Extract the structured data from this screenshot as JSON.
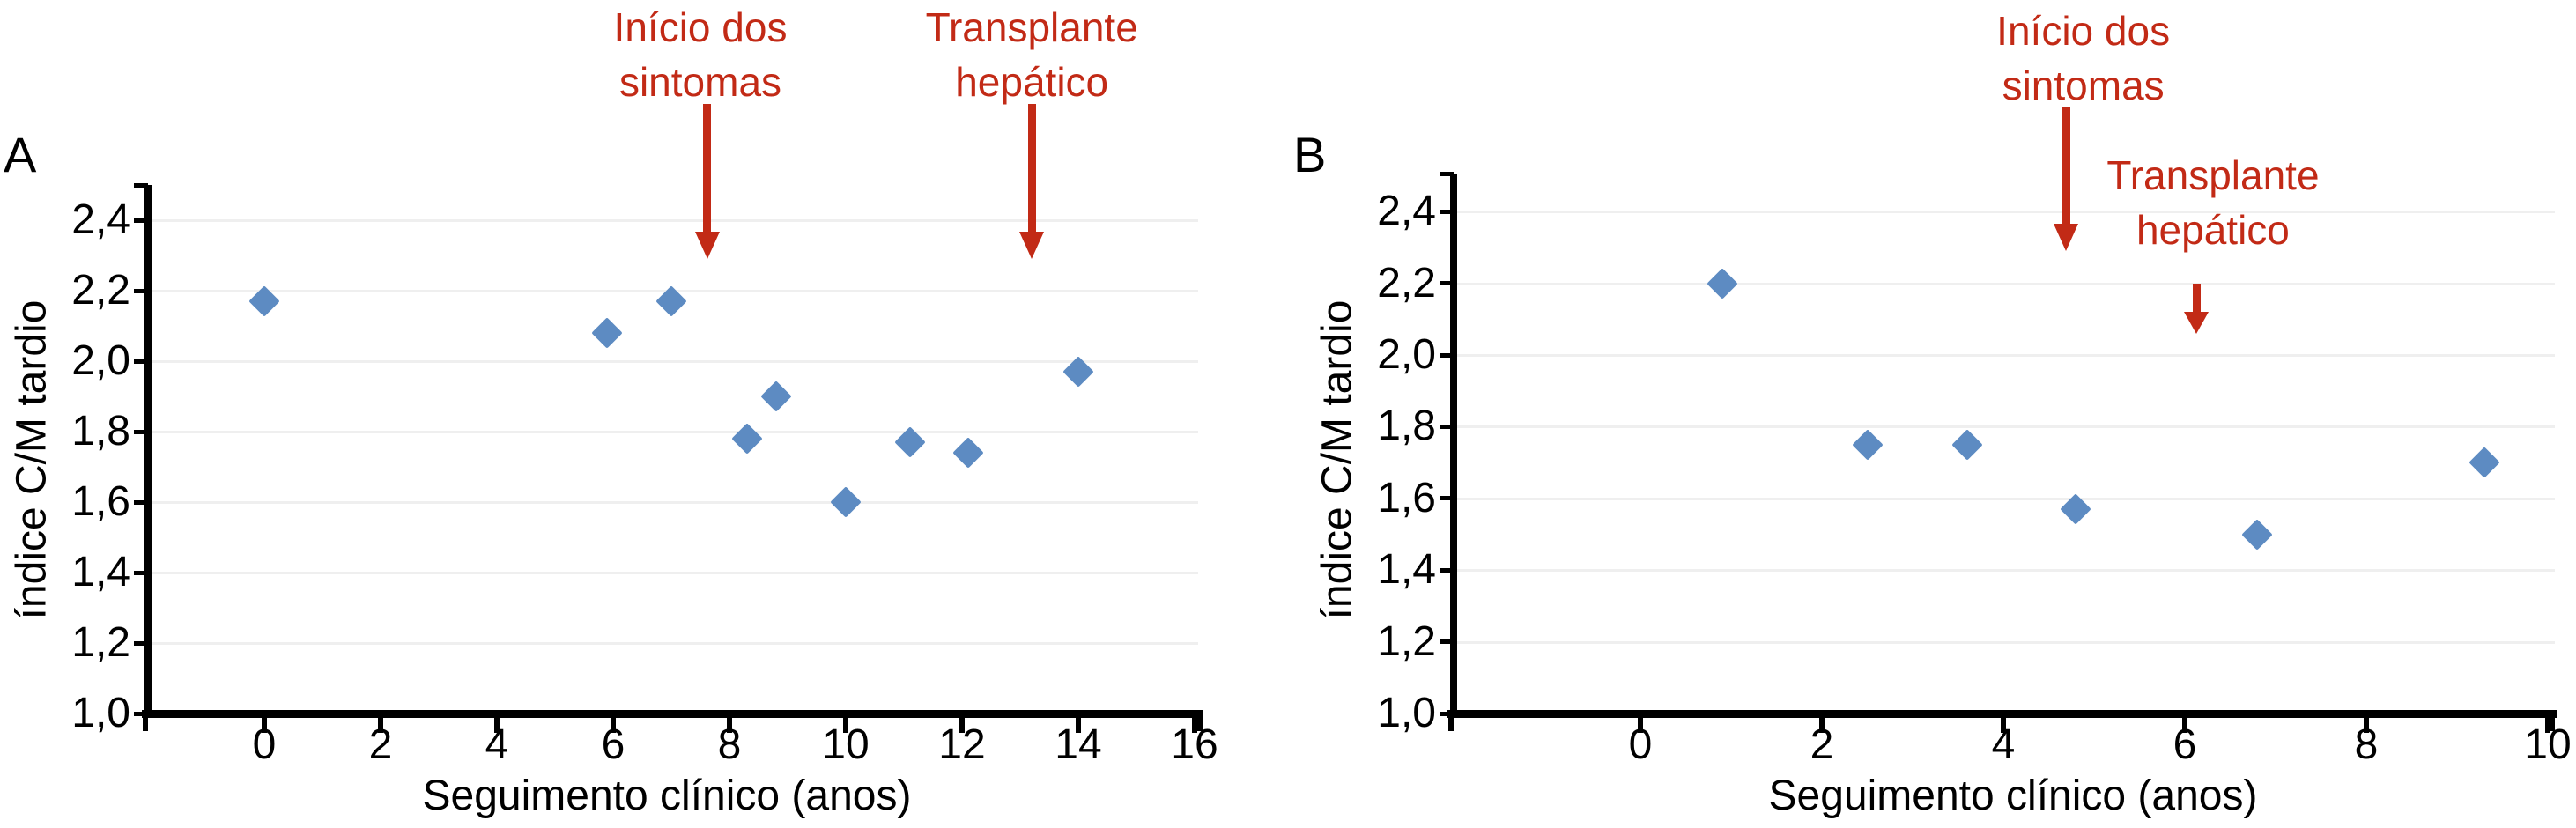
{
  "colors": {
    "marker": "#5d8bc2",
    "annotation_red": "#c22a16",
    "grid": "#efefef",
    "axis": "#000000",
    "background": "#ffffff"
  },
  "chart_data": [
    {
      "panel": "A",
      "type": "scatter",
      "marker": "diamond",
      "xlabel": "Seguimento clínico (anos)",
      "ylabel": "índice C/M tardio",
      "xlim": [
        0,
        16
      ],
      "ylim": [
        1.0,
        2.4
      ],
      "grid": true,
      "legend": false,
      "xticks": [
        0,
        2,
        4,
        6,
        8,
        10,
        12,
        14,
        16
      ],
      "yticks": [
        {
          "label": "2,4",
          "value": 2.4
        },
        {
          "label": "2,2",
          "value": 2.2
        },
        {
          "label": "2,0",
          "value": 2.0
        },
        {
          "label": "1,8",
          "value": 1.8
        },
        {
          "label": "1,6",
          "value": 1.6
        },
        {
          "label": "1,4",
          "value": 1.4
        },
        {
          "label": "1,2",
          "value": 1.2
        },
        {
          "label": "1,0",
          "value": 1.0
        }
      ],
      "points": [
        {
          "x": 0.0,
          "y": 2.17
        },
        {
          "x": 5.9,
          "y": 2.08
        },
        {
          "x": 7.0,
          "y": 2.17
        },
        {
          "x": 8.3,
          "y": 1.78
        },
        {
          "x": 8.8,
          "y": 1.9
        },
        {
          "x": 10.0,
          "y": 1.6
        },
        {
          "x": 11.1,
          "y": 1.77
        },
        {
          "x": 12.1,
          "y": 1.74
        },
        {
          "x": 14.0,
          "y": 1.97
        }
      ],
      "annotations": [
        {
          "label": "Início dos sintomas",
          "lines": [
            "Início dos",
            "sintomas"
          ],
          "text_x": 7.5,
          "arrow": {
            "x": 7.62,
            "from_y": 2.73,
            "to_y": 2.29
          }
        },
        {
          "label": "Transplante hepático",
          "lines": [
            "Transplante",
            "hepático"
          ],
          "text_x": 13.2,
          "arrow": {
            "x": 13.2,
            "from_y": 2.73,
            "to_y": 2.29
          }
        }
      ]
    },
    {
      "panel": "B",
      "type": "scatter",
      "marker": "diamond",
      "xlabel": "Seguimento clínico (anos)",
      "ylabel": "índice C/M tardio",
      "xlim": [
        0,
        10
      ],
      "ylim": [
        1.0,
        2.4
      ],
      "grid": true,
      "legend": false,
      "xticks": [
        0,
        2,
        4,
        6,
        8,
        10
      ],
      "yticks": [
        {
          "label": "2,4",
          "value": 2.4
        },
        {
          "label": "2,2",
          "value": 2.2
        },
        {
          "label": "2,0",
          "value": 2.0
        },
        {
          "label": "1,8",
          "value": 1.8
        },
        {
          "label": "1,6",
          "value": 1.6
        },
        {
          "label": "1,4",
          "value": 1.4
        },
        {
          "label": "1,2",
          "value": 1.2
        },
        {
          "label": "1,0",
          "value": 1.0
        }
      ],
      "points": [
        {
          "x": 0.9,
          "y": 2.2
        },
        {
          "x": 2.5,
          "y": 1.75
        },
        {
          "x": 3.6,
          "y": 1.75
        },
        {
          "x": 4.8,
          "y": 1.57
        },
        {
          "x": 6.8,
          "y": 1.5
        },
        {
          "x": 9.3,
          "y": 1.7
        }
      ],
      "annotations": [
        {
          "label": "Início dos sintomas",
          "lines": [
            "Início dos",
            "sintomas"
          ],
          "text_x": 4.88,
          "arrow": {
            "x": 4.69,
            "from_y": 2.69,
            "to_y": 2.29
          }
        },
        {
          "label": "Transplante hepático",
          "lines": [
            "Transplante",
            "hepático"
          ],
          "text_x": 6.31,
          "arrow": {
            "x": 6.13,
            "from_y": 2.2,
            "to_y": 2.06
          }
        }
      ]
    }
  ]
}
